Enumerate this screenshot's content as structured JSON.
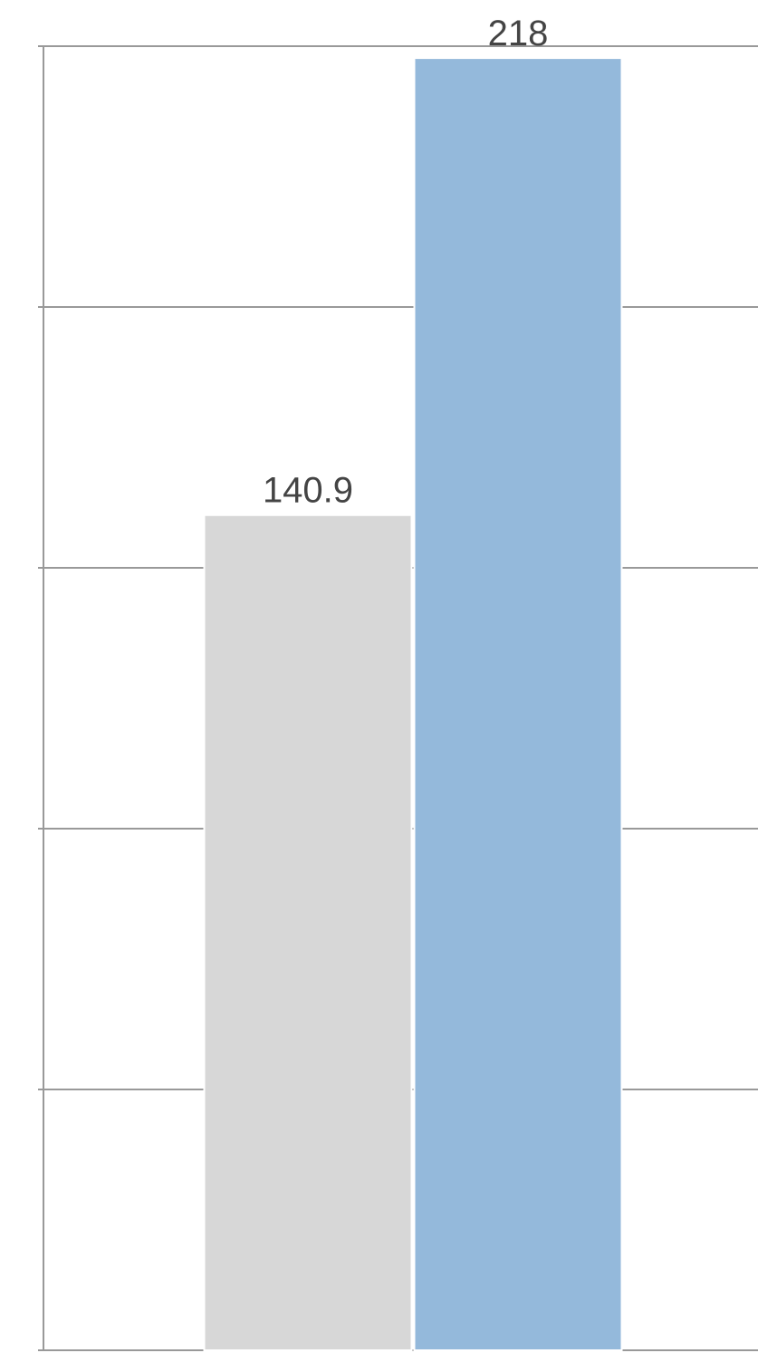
{
  "chart_data": {
    "type": "bar",
    "categories": [
      null,
      null
    ],
    "values": [
      140.9,
      218
    ],
    "colors": [
      "#d7d7d7",
      "#94b9db"
    ],
    "ylim": [
      0,
      220
    ],
    "yticks": [
      0,
      44,
      88,
      132,
      176,
      220
    ],
    "grid": true
  }
}
